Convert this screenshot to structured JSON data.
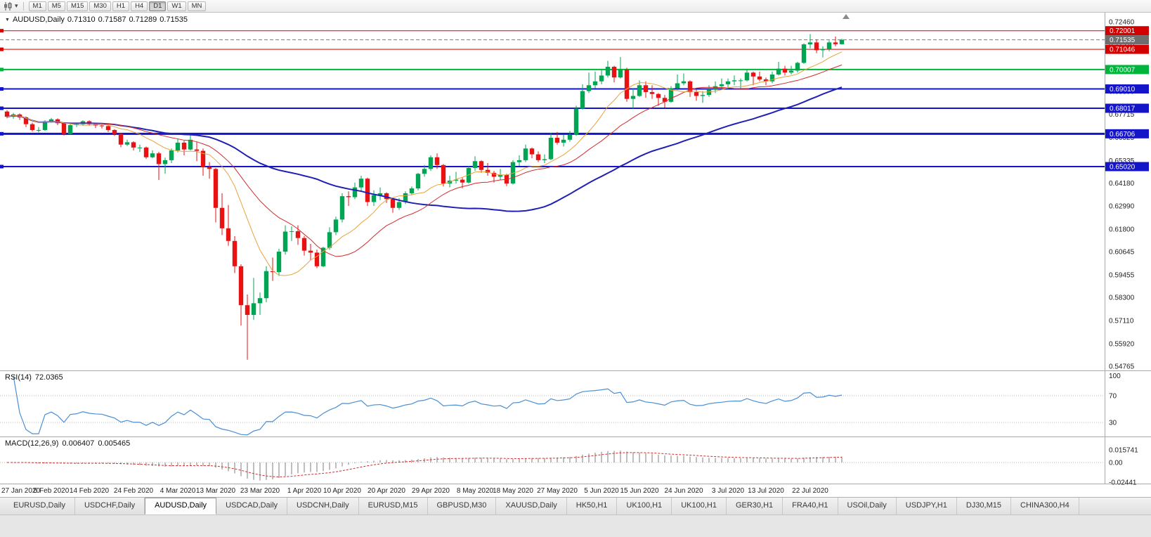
{
  "glyphs": {
    "collapse": "▼",
    "caret": "▾"
  },
  "icons": {
    "chart_type": "candlestick-chart-icon",
    "caret": "chevron-down-icon",
    "collapse": "collapse-chart-icon",
    "shift_marker": "chart-shift-marker-icon"
  },
  "toolbar": {
    "timeframes": [
      "M1",
      "M5",
      "M15",
      "M30",
      "H1",
      "H4",
      "D1",
      "W1",
      "MN"
    ],
    "active": "D1"
  },
  "chart_data": {
    "type": "candlestick",
    "symbol": "AUDUSD",
    "timeframe": "Daily",
    "title": "AUDUSD,Daily",
    "last_bar": {
      "open": "0.71310",
      "high": "0.71587",
      "low": "0.71289",
      "close": "0.71535"
    },
    "y_axis": {
      "top_price": 0.7246,
      "bottom_price": 0.54765,
      "ticks": [
        "0.72460",
        "0.71270",
        "0.70080",
        "0.68890",
        "0.67715",
        "0.66525",
        "0.65335",
        "0.64180",
        "0.62990",
        "0.61800",
        "0.60645",
        "0.59455",
        "0.58300",
        "0.57110",
        "0.55920",
        "0.54765"
      ]
    },
    "x_axis": {
      "labels": [
        "27 Jan 2020",
        "5 Feb 2020",
        "14 Feb 2020",
        "24 Feb 2020",
        "4 Mar 2020",
        "13 Mar 2020",
        "23 Mar 2020",
        "1 Apr 2020",
        "10 Apr 2020",
        "20 Apr 2020",
        "29 Apr 2020",
        "8 May 2020",
        "18 May 2020",
        "27 May 2020",
        "5 Jun 2020",
        "15 Jun 2020",
        "24 Jun 2020",
        "3 Jul 2020",
        "13 Jul 2020",
        "22 Jul 2020"
      ],
      "indices": [
        0,
        7,
        13,
        20,
        27,
        33,
        40,
        47,
        53,
        60,
        67,
        74,
        80,
        87,
        94,
        100,
        107,
        114,
        120,
        127
      ]
    },
    "colors": {
      "up": "#00a553",
      "down": "#e81212",
      "rsi": "#4a8fd4",
      "macd_hist": "#9a9a9a",
      "macd_signal": "#d22c2c",
      "axis_text": "#222222",
      "background": "#ffffff"
    },
    "horizontal_lines": [
      {
        "price": 0.72001,
        "label": "0.72001",
        "color": "#d40000",
        "width": 1,
        "style": "solid"
      },
      {
        "price": 0.71535,
        "label": "0.71535",
        "color": "#7a7a7a",
        "width": 1,
        "style": "dashed",
        "role": "bid"
      },
      {
        "price": 0.71046,
        "label": "0.71046",
        "color": "#d40000",
        "width": 1,
        "style": "solid"
      },
      {
        "price": 0.70007,
        "label": "0.70007",
        "color": "#00b43c",
        "width": 2,
        "style": "solid"
      },
      {
        "price": 0.6901,
        "label": "0.69010",
        "color": "#1414c8",
        "width": 2,
        "style": "solid"
      },
      {
        "price": 0.68017,
        "label": "0.68017",
        "color": "#1414c8",
        "width": 2,
        "style": "solid"
      },
      {
        "price": 0.66706,
        "label": "0.66706",
        "color": "#1414c8",
        "width": 3,
        "style": "solid"
      },
      {
        "price": 0.6502,
        "label": "0.65020",
        "color": "#1414c8",
        "width": 2,
        "style": "solid"
      }
    ],
    "moving_averages": [
      {
        "period": 10,
        "color": "#e8a23c",
        "width": 1
      },
      {
        "period": 20,
        "color": "#d22c2c",
        "width": 1
      },
      {
        "period": 50,
        "color": "#2020b4",
        "width": 2
      }
    ],
    "rsi": {
      "name": "RSI(14)",
      "value": "72.0365",
      "period": 14,
      "levels": [
        70,
        30
      ],
      "axis_labels": [
        "100",
        "70",
        "30"
      ]
    },
    "macd": {
      "name": "MACD(12,26,9)",
      "value_main": "0.006407",
      "value_signal": "0.005465",
      "fast": 12,
      "slow": 26,
      "signal": 9,
      "axis_labels": [
        "0.015741",
        "0.00",
        "-0.02441"
      ]
    },
    "candles": [
      [
        0.6785,
        0.6792,
        0.675,
        0.6758
      ],
      [
        0.6758,
        0.6778,
        0.6748,
        0.677
      ],
      [
        0.677,
        0.6775,
        0.6742,
        0.6755
      ],
      [
        0.6755,
        0.676,
        0.6705,
        0.672
      ],
      [
        0.672,
        0.6728,
        0.6682,
        0.669
      ],
      [
        0.669,
        0.6705,
        0.6678,
        0.669
      ],
      [
        0.669,
        0.674,
        0.6685,
        0.6735
      ],
      [
        0.6735,
        0.6752,
        0.6728,
        0.6745
      ],
      [
        0.6745,
        0.675,
        0.6715,
        0.6725
      ],
      [
        0.6725,
        0.673,
        0.6662,
        0.667
      ],
      [
        0.667,
        0.672,
        0.6665,
        0.6715
      ],
      [
        0.6715,
        0.6728,
        0.6705,
        0.672
      ],
      [
        0.672,
        0.674,
        0.6712,
        0.6735
      ],
      [
        0.6735,
        0.674,
        0.6712,
        0.672
      ],
      [
        0.672,
        0.6725,
        0.67,
        0.6713
      ],
      [
        0.6713,
        0.6718,
        0.6698,
        0.671
      ],
      [
        0.671,
        0.6715,
        0.668,
        0.669
      ],
      [
        0.669,
        0.6695,
        0.666,
        0.667
      ],
      [
        0.667,
        0.6675,
        0.6602,
        0.6615
      ],
      [
        0.6615,
        0.664,
        0.6608,
        0.6627
      ],
      [
        0.6627,
        0.6632,
        0.6585,
        0.66
      ],
      [
        0.66,
        0.6615,
        0.6578,
        0.66
      ],
      [
        0.66,
        0.6605,
        0.6542,
        0.655
      ],
      [
        0.655,
        0.6585,
        0.6545,
        0.657
      ],
      [
        0.657,
        0.6578,
        0.6433,
        0.6515
      ],
      [
        0.6515,
        0.6548,
        0.6465,
        0.6535
      ],
      [
        0.6535,
        0.6595,
        0.652,
        0.6585
      ],
      [
        0.6585,
        0.6645,
        0.6575,
        0.6625
      ],
      [
        0.6625,
        0.6635,
        0.656,
        0.659
      ],
      [
        0.659,
        0.6665,
        0.6585,
        0.664
      ],
      [
        0.659,
        0.663,
        0.653,
        0.6583
      ],
      [
        0.6583,
        0.6595,
        0.6455,
        0.65
      ],
      [
        0.65,
        0.6525,
        0.644,
        0.649
      ],
      [
        0.649,
        0.6495,
        0.6215,
        0.629
      ],
      [
        0.629,
        0.6365,
        0.615,
        0.6185
      ],
      [
        0.6185,
        0.6305,
        0.6095,
        0.612
      ],
      [
        0.612,
        0.6145,
        0.5955,
        0.599
      ],
      [
        0.599,
        0.6,
        0.5685,
        0.579
      ],
      [
        0.579,
        0.5845,
        0.551,
        0.574
      ],
      [
        0.574,
        0.593,
        0.5715,
        0.58
      ],
      [
        0.58,
        0.5855,
        0.574,
        0.5826
      ],
      [
        0.5826,
        0.599,
        0.5805,
        0.5965
      ],
      [
        0.5965,
        0.6035,
        0.5915,
        0.596
      ],
      [
        0.596,
        0.608,
        0.594,
        0.6065
      ],
      [
        0.6065,
        0.62,
        0.605,
        0.6168
      ],
      [
        0.6168,
        0.6195,
        0.612,
        0.617
      ],
      [
        0.617,
        0.62,
        0.61,
        0.6135
      ],
      [
        0.6135,
        0.6145,
        0.6045,
        0.607
      ],
      [
        0.607,
        0.6105,
        0.602,
        0.606
      ],
      [
        0.606,
        0.6075,
        0.598,
        0.599
      ],
      [
        0.599,
        0.609,
        0.5985,
        0.6085
      ],
      [
        0.6085,
        0.619,
        0.6075,
        0.6165
      ],
      [
        0.6165,
        0.6245,
        0.615,
        0.623
      ],
      [
        0.623,
        0.6365,
        0.6215,
        0.635
      ],
      [
        0.635,
        0.6375,
        0.63,
        0.6345
      ],
      [
        0.6345,
        0.642,
        0.6335,
        0.6395
      ],
      [
        0.6395,
        0.6455,
        0.6375,
        0.644
      ],
      [
        0.644,
        0.6445,
        0.63,
        0.632
      ],
      [
        0.632,
        0.638,
        0.63,
        0.6355
      ],
      [
        0.6355,
        0.6395,
        0.633,
        0.6365
      ],
      [
        0.6365,
        0.637,
        0.6315,
        0.6335
      ],
      [
        0.6335,
        0.634,
        0.6265,
        0.629
      ],
      [
        0.629,
        0.634,
        0.628,
        0.632
      ],
      [
        0.632,
        0.6375,
        0.631,
        0.6365
      ],
      [
        0.6365,
        0.64,
        0.6355,
        0.639
      ],
      [
        0.639,
        0.647,
        0.638,
        0.6465
      ],
      [
        0.6465,
        0.651,
        0.645,
        0.649
      ],
      [
        0.649,
        0.656,
        0.648,
        0.655
      ],
      [
        0.655,
        0.657,
        0.649,
        0.651
      ],
      [
        0.651,
        0.6515,
        0.64,
        0.6415
      ],
      [
        0.6415,
        0.6455,
        0.6395,
        0.643
      ],
      [
        0.643,
        0.6475,
        0.6415,
        0.6435
      ],
      [
        0.6435,
        0.6445,
        0.639,
        0.642
      ],
      [
        0.642,
        0.6505,
        0.6415,
        0.6495
      ],
      [
        0.6495,
        0.6555,
        0.648,
        0.653
      ],
      [
        0.653,
        0.6535,
        0.647,
        0.6485
      ],
      [
        0.6485,
        0.652,
        0.6455,
        0.647
      ],
      [
        0.647,
        0.648,
        0.642,
        0.645
      ],
      [
        0.645,
        0.649,
        0.6435,
        0.646
      ],
      [
        0.646,
        0.6465,
        0.6402,
        0.6415
      ],
      [
        0.6415,
        0.6535,
        0.641,
        0.6525
      ],
      [
        0.6525,
        0.656,
        0.6505,
        0.6535
      ],
      [
        0.6535,
        0.6615,
        0.6525,
        0.6595
      ],
      [
        0.6595,
        0.66,
        0.6545,
        0.6565
      ],
      [
        0.6565,
        0.658,
        0.6525,
        0.6535
      ],
      [
        0.6535,
        0.6565,
        0.652,
        0.654
      ],
      [
        0.654,
        0.6675,
        0.6535,
        0.665
      ],
      [
        0.665,
        0.668,
        0.6615,
        0.6625
      ],
      [
        0.6625,
        0.6665,
        0.6605,
        0.664
      ],
      [
        0.664,
        0.6685,
        0.663,
        0.6665
      ],
      [
        0.6665,
        0.6815,
        0.666,
        0.68
      ],
      [
        0.68,
        0.6925,
        0.6795,
        0.689
      ],
      [
        0.689,
        0.6985,
        0.688,
        0.692
      ],
      [
        0.692,
        0.699,
        0.6905,
        0.694
      ],
      [
        0.694,
        0.7,
        0.6925,
        0.697
      ],
      [
        0.697,
        0.7045,
        0.696,
        0.7015
      ],
      [
        0.7015,
        0.702,
        0.6935,
        0.696
      ],
      [
        0.696,
        0.7065,
        0.6955,
        0.7
      ],
      [
        0.7,
        0.701,
        0.6835,
        0.685
      ],
      [
        0.685,
        0.6905,
        0.68,
        0.6865
      ],
      [
        0.6865,
        0.6945,
        0.686,
        0.692
      ],
      [
        0.692,
        0.694,
        0.6855,
        0.6885
      ],
      [
        0.6885,
        0.692,
        0.685,
        0.6875
      ],
      [
        0.6875,
        0.688,
        0.6815,
        0.6855
      ],
      [
        0.6855,
        0.687,
        0.6805,
        0.6835
      ],
      [
        0.6835,
        0.6915,
        0.683,
        0.6905
      ],
      [
        0.6905,
        0.6975,
        0.6895,
        0.693
      ],
      [
        0.693,
        0.698,
        0.692,
        0.694
      ],
      [
        0.694,
        0.6945,
        0.686,
        0.6885
      ],
      [
        0.6885,
        0.69,
        0.684,
        0.6865
      ],
      [
        0.6865,
        0.689,
        0.683,
        0.687
      ],
      [
        0.687,
        0.692,
        0.686,
        0.69
      ],
      [
        0.69,
        0.694,
        0.688,
        0.6915
      ],
      [
        0.6915,
        0.6955,
        0.69,
        0.6925
      ],
      [
        0.6925,
        0.6955,
        0.69,
        0.694
      ],
      [
        0.694,
        0.697,
        0.692,
        0.6945
      ],
      [
        0.6945,
        0.6955,
        0.6905,
        0.6945
      ],
      [
        0.6945,
        0.7,
        0.694,
        0.6985
      ],
      [
        0.6985,
        0.699,
        0.692,
        0.6965
      ],
      [
        0.6965,
        0.699,
        0.694,
        0.695
      ],
      [
        0.695,
        0.696,
        0.692,
        0.694
      ],
      [
        0.694,
        0.699,
        0.693,
        0.6975
      ],
      [
        0.6975,
        0.704,
        0.697,
        0.7005
      ],
      [
        0.7005,
        0.702,
        0.697,
        0.6985
      ],
      [
        0.6985,
        0.702,
        0.6975,
        0.6995
      ],
      [
        0.6995,
        0.704,
        0.6985,
        0.7035
      ],
      [
        0.7035,
        0.7135,
        0.703,
        0.713
      ],
      [
        0.713,
        0.7183,
        0.711,
        0.714
      ],
      [
        0.714,
        0.7155,
        0.7085,
        0.71
      ],
      [
        0.71,
        0.712,
        0.7063,
        0.7105
      ],
      [
        0.7105,
        0.715,
        0.7095,
        0.714
      ],
      [
        0.714,
        0.717,
        0.712,
        0.7131
      ],
      [
        0.7131,
        0.71587,
        0.71289,
        0.71535
      ]
    ]
  },
  "tabbar": {
    "tabs": [
      "EURUSD,Daily",
      "USDCHF,Daily",
      "AUDUSD,Daily",
      "USDCAD,Daily",
      "USDCNH,Daily",
      "EURUSD,M15",
      "GBPUSD,M30",
      "XAUUSD,Daily",
      "HK50,H1",
      "UK100,H1",
      "UK100,H1",
      "GER30,H1",
      "FRA40,H1",
      "USOil,Daily",
      "USDJPY,H1",
      "DJ30,M15",
      "CHINA300,H4"
    ],
    "active_index": 2
  }
}
